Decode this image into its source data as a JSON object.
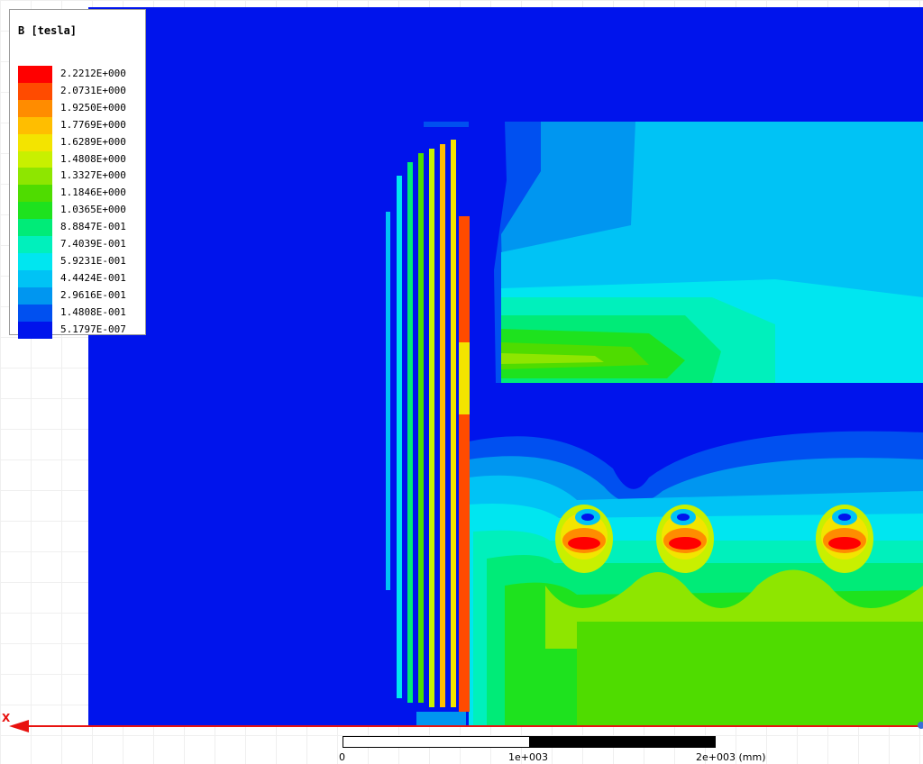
{
  "legend": {
    "title": "B [tesla]",
    "entries": [
      {
        "value": "2.2212E+000",
        "color": "#ff0000"
      },
      {
        "value": "2.0731E+000",
        "color": "#ff4b00"
      },
      {
        "value": "1.9250E+000",
        "color": "#ff8c00"
      },
      {
        "value": "1.7769E+000",
        "color": "#ffbe00"
      },
      {
        "value": "1.6289E+000",
        "color": "#f3e400"
      },
      {
        "value": "1.4808E+000",
        "color": "#c8f000"
      },
      {
        "value": "1.3327E+000",
        "color": "#8ee600"
      },
      {
        "value": "1.1846E+000",
        "color": "#4fdc00"
      },
      {
        "value": "1.0365E+000",
        "color": "#1ee21e"
      },
      {
        "value": "8.8847E-001",
        "color": "#00eb78"
      },
      {
        "value": "7.4039E-001",
        "color": "#00f0bc"
      },
      {
        "value": "5.9231E-001",
        "color": "#00e6f0"
      },
      {
        "value": "4.4424E-001",
        "color": "#00c3f5"
      },
      {
        "value": "2.9616E-001",
        "color": "#0096f0"
      },
      {
        "value": "1.4808E-001",
        "color": "#0050f0"
      },
      {
        "value": "5.1797E-007",
        "color": "#0014ec"
      }
    ]
  },
  "axis": {
    "label": "X"
  },
  "scale_bar": {
    "ticks": [
      "0",
      "1e+003",
      "2e+003 (mm)"
    ]
  }
}
